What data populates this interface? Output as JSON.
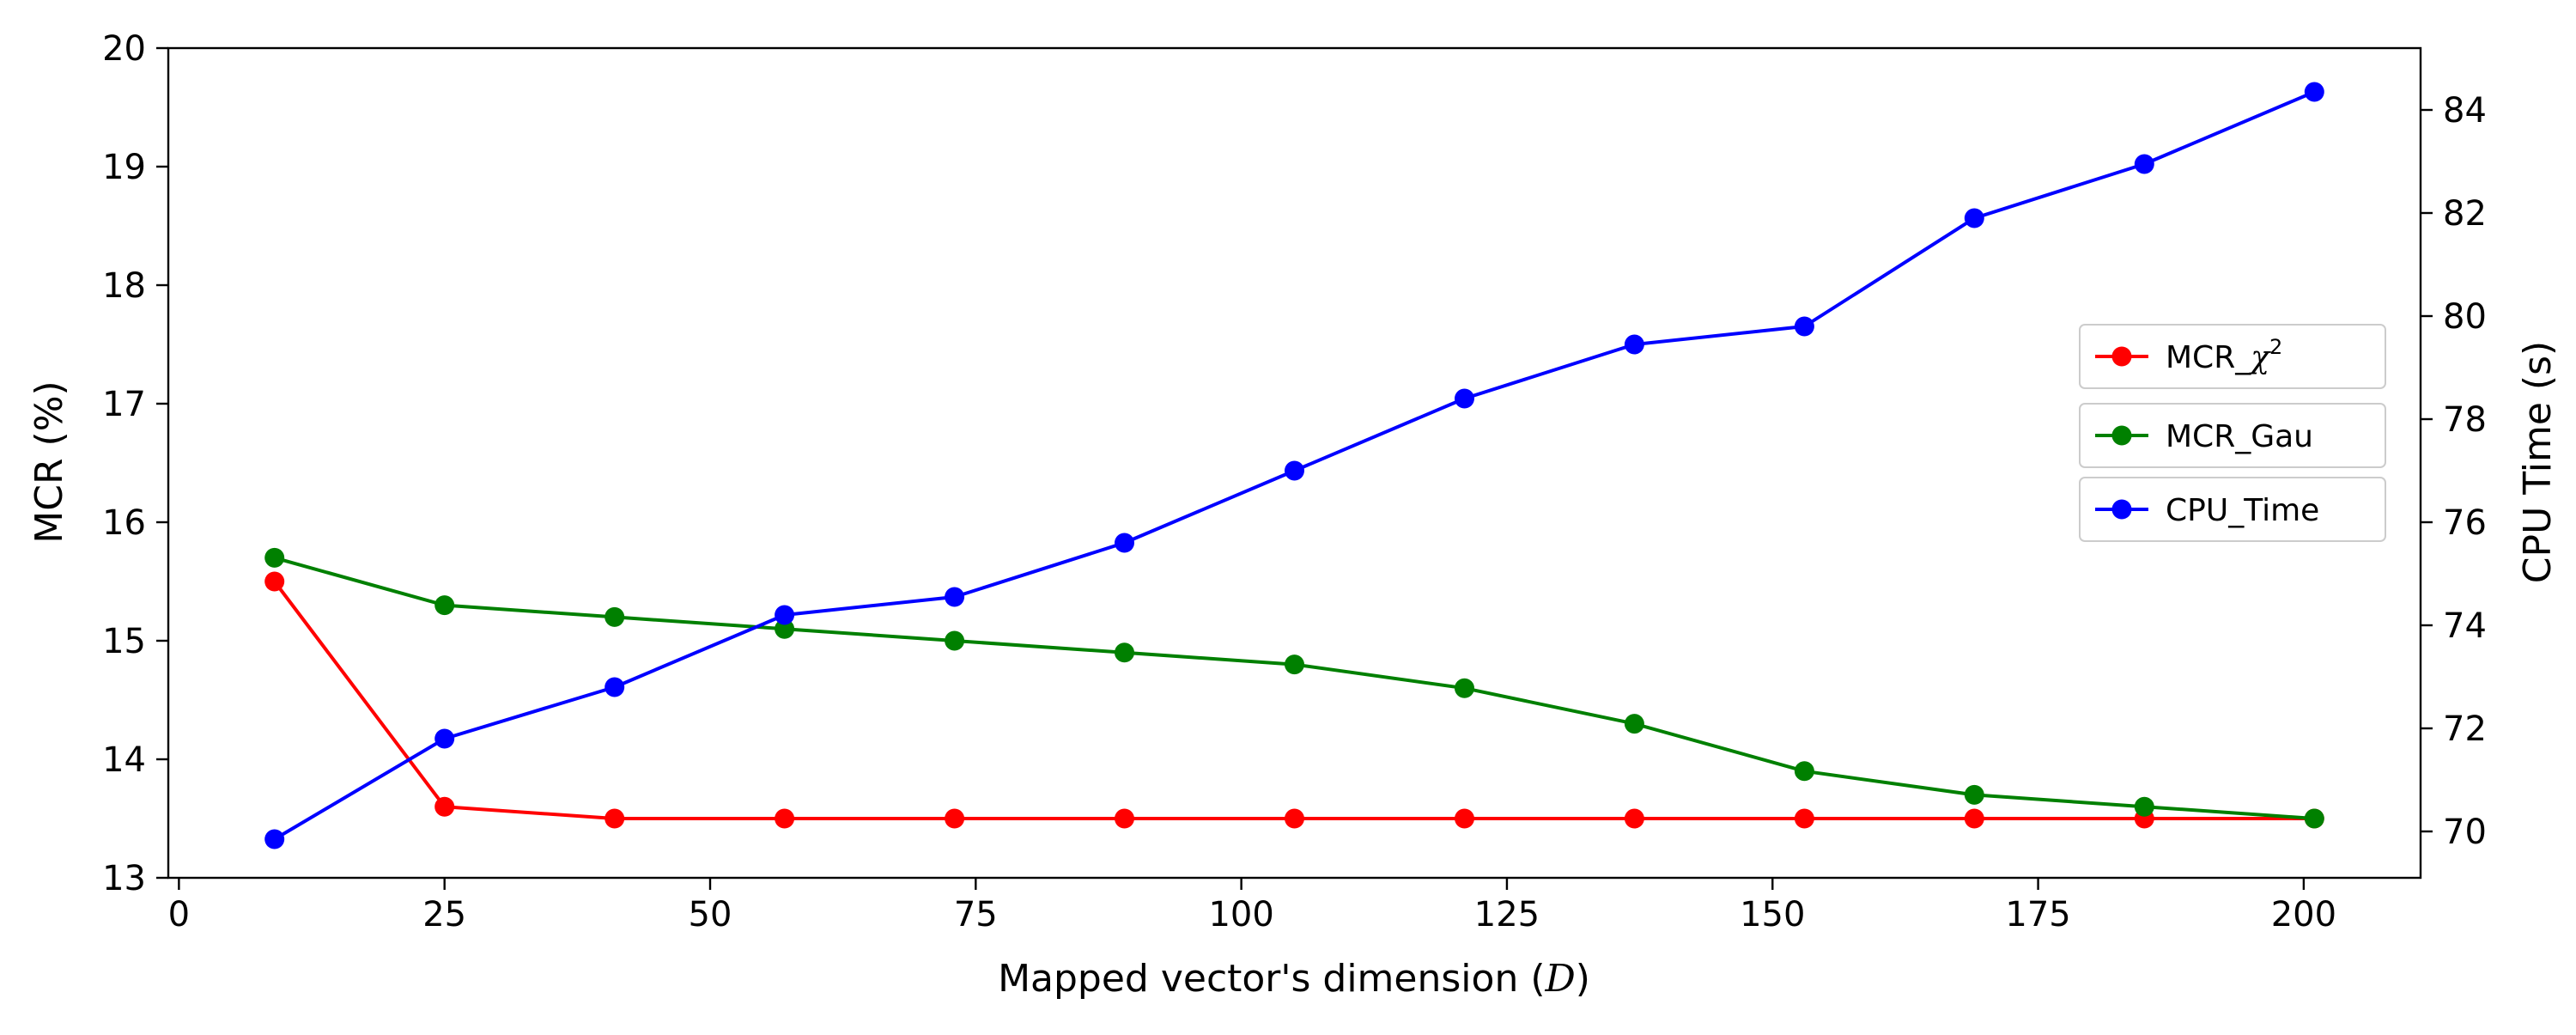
{
  "chart_data": {
    "type": "line",
    "title": "",
    "xlabel": "Mapped vector's dimension (",
    "xlabel_symbol": "D",
    "xlabel_suffix": ")",
    "ylabel_left": "MCR (%)",
    "ylabel_right": "CPU Time (s)",
    "xlim": [
      -1,
      211
    ],
    "ylim_left": [
      13,
      20
    ],
    "ylim_right": [
      69.1,
      85.2
    ],
    "xticks": [
      "0",
      "25",
      "50",
      "75",
      "100",
      "125",
      "150",
      "175",
      "200"
    ],
    "yticks_left": [
      "13",
      "14",
      "15",
      "16",
      "17",
      "18",
      "19",
      "20"
    ],
    "yticks_right": [
      "70",
      "72",
      "74",
      "76",
      "78",
      "80",
      "82",
      "84"
    ],
    "grid": false,
    "legend_position": "center-right",
    "x": [
      9,
      25,
      41,
      57,
      73,
      89,
      105,
      121,
      137,
      153,
      169,
      185,
      201
    ],
    "series": [
      {
        "name": "MCR_χ²",
        "name_base": "MCR_",
        "name_symbol": "χ",
        "name_sup": "2",
        "axis": "left",
        "color": "#ff0000",
        "values": [
          15.5,
          13.6,
          13.5,
          13.5,
          13.5,
          13.5,
          13.5,
          13.5,
          13.5,
          13.5,
          13.5,
          13.5,
          13.5
        ]
      },
      {
        "name": "MCR_Gau",
        "axis": "left",
        "color": "#008000",
        "values": [
          15.7,
          15.3,
          15.2,
          15.1,
          15.0,
          14.9,
          14.8,
          14.6,
          14.3,
          13.9,
          13.7,
          13.6,
          13.5
        ]
      },
      {
        "name": "CPU_Time",
        "axis": "right",
        "color": "#0000ff",
        "values": [
          69.85,
          71.8,
          72.8,
          74.2,
          74.55,
          75.6,
          77.0,
          78.4,
          79.45,
          79.8,
          81.9,
          82.95,
          84.35
        ]
      }
    ]
  }
}
